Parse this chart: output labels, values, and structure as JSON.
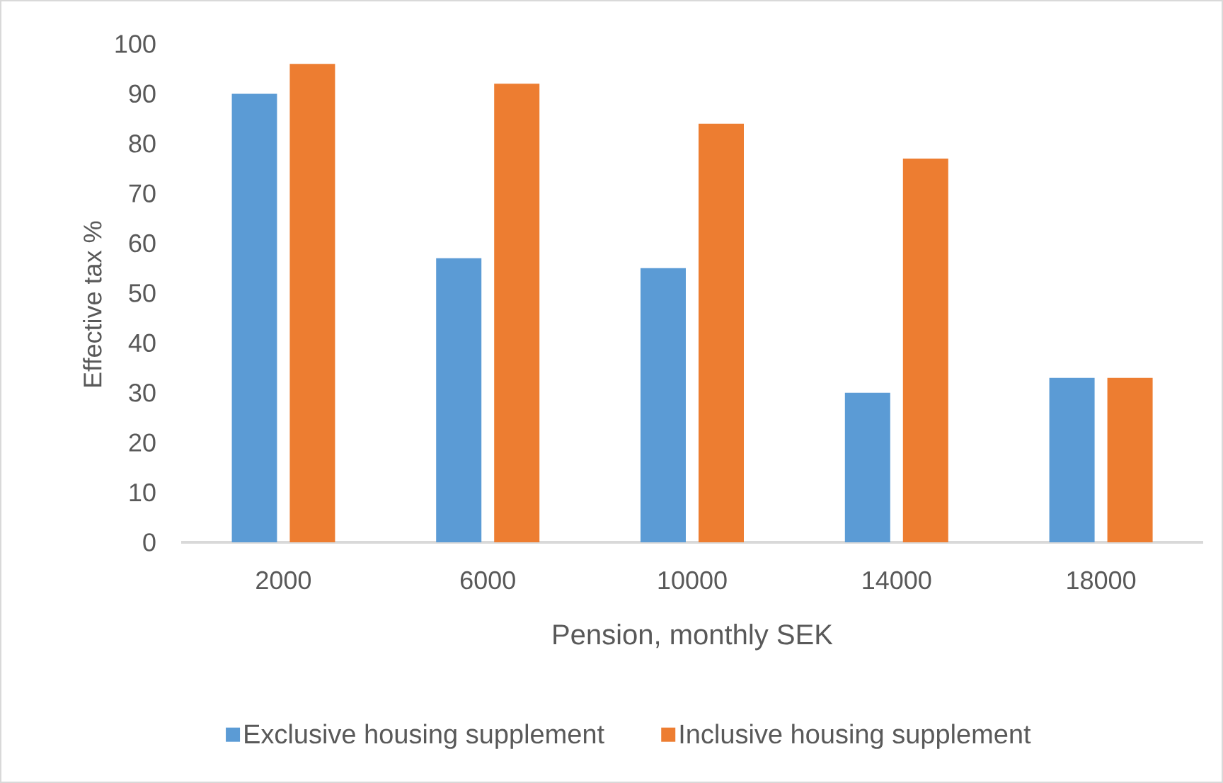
{
  "chart_data": {
    "type": "bar",
    "xlabel": "Pension, monthly SEK",
    "ylabel": "Effective tax %",
    "categories": [
      "2000",
      "6000",
      "10000",
      "14000",
      "18000"
    ],
    "series": [
      {
        "name": "Exclusive housing supplement",
        "color": "#5b9bd5",
        "values": [
          90,
          57,
          55,
          30,
          33
        ]
      },
      {
        "name": "Inclusive housing supplement",
        "color": "#ed7d31",
        "values": [
          96,
          92,
          84,
          77,
          33
        ]
      }
    ],
    "ylim": [
      0,
      100
    ],
    "yticks": [
      0,
      10,
      20,
      30,
      40,
      50,
      60,
      70,
      80,
      90,
      100
    ],
    "legend": "bottom"
  }
}
